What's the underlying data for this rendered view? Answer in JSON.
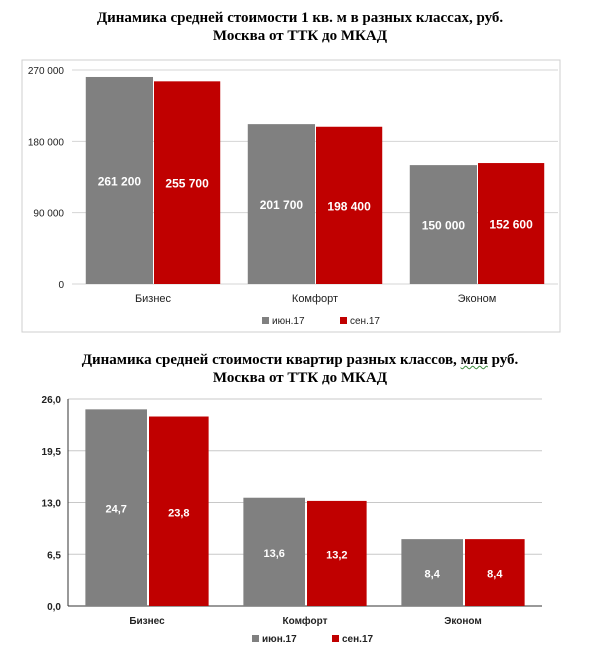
{
  "chart_data": [
    {
      "type": "bar",
      "title_line1": "Динамика средней стоимости 1 кв. м в разных классах, руб.",
      "title_line2": "Москва от ТТК до МКАД",
      "categories": [
        "Бизнес",
        "Комфорт",
        "Эконом"
      ],
      "series": [
        {
          "name": "июн.17",
          "values": [
            261200,
            201700,
            150000
          ],
          "labels": [
            "261 200",
            "201 700",
            "150 000"
          ],
          "color": "#808080"
        },
        {
          "name": "сен.17",
          "values": [
            255700,
            198400,
            152600
          ],
          "labels": [
            "255 700",
            "198 400",
            "152 600"
          ],
          "color": "#c00000"
        }
      ],
      "ylim": [
        0,
        270000
      ],
      "yticks": [
        0,
        90000,
        180000,
        270000
      ],
      "ytick_labels": [
        "0",
        "90 000",
        "180 000",
        "270 000"
      ],
      "grid": true,
      "legend": "bottom"
    },
    {
      "type": "bar",
      "title_line1": "Динамика средней стоимости квартир разных классов, млн руб.",
      "title_line2": "Москва от ТТК до МКАД",
      "title_wavy_word": "млн",
      "categories": [
        "Бизнес",
        "Комфорт",
        "Эконом"
      ],
      "series": [
        {
          "name": "июн.17",
          "values": [
            24.7,
            13.6,
            8.4
          ],
          "labels": [
            "24,7",
            "13,6",
            "8,4"
          ],
          "color": "#808080"
        },
        {
          "name": "сен.17",
          "values": [
            23.8,
            13.2,
            8.4
          ],
          "labels": [
            "23,8",
            "13,2",
            "8,4"
          ],
          "color": "#c00000"
        }
      ],
      "ylim": [
        0,
        26
      ],
      "yticks": [
        0,
        6.5,
        13,
        19.5,
        26
      ],
      "ytick_labels": [
        "0,0",
        "6,5",
        "13,0",
        "19,5",
        "26,0"
      ],
      "grid": true,
      "legend": "bottom"
    }
  ]
}
